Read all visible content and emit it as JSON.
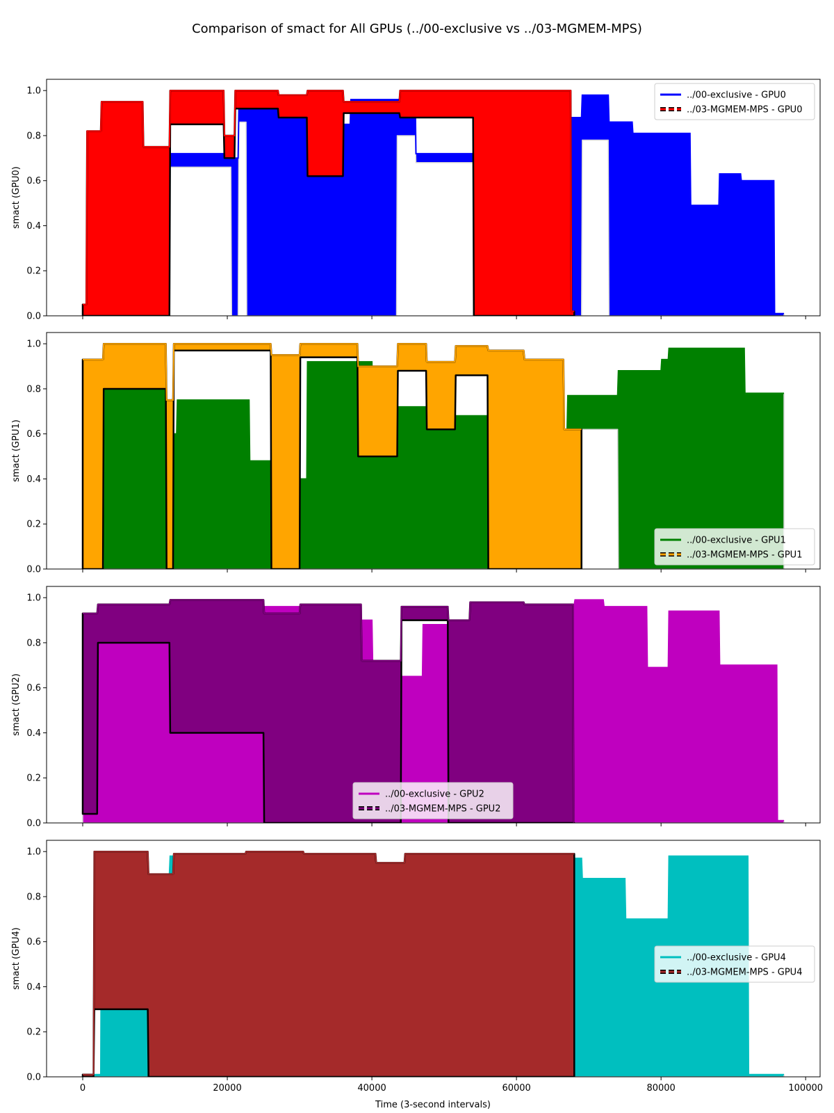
{
  "figure": {
    "title": "Comparison of smact for All GPUs (../00-exclusive vs ../03-MGMEM-MPS)",
    "xlabel": "Time (3-second intervals)"
  },
  "chart_data": [
    {
      "type": "line",
      "ylabel": "smact (GPU0)",
      "xlim": [
        -5000,
        102000
      ],
      "ylim": [
        0,
        1.05
      ],
      "xticks": [
        0,
        20000,
        40000,
        60000,
        80000,
        100000
      ],
      "xtick_labels": [
        "0",
        "20000",
        "40000",
        "60000",
        "80000",
        "100000"
      ],
      "show_xtick_labels": false,
      "yticks": [
        0.0,
        0.2,
        0.4,
        0.6,
        0.8,
        1.0
      ],
      "ytick_labels": [
        "0.0",
        "0.2",
        "0.4",
        "0.6",
        "0.8",
        "1.0"
      ],
      "legend_position": "top-right",
      "series": [
        {
          "name": "../00-exclusive - GPU0",
          "color": "#0000ff",
          "style": "solid",
          "x": [
            0,
            2800,
            2900,
            8200,
            8300,
            12000,
            12100,
            20500,
            20600,
            21500,
            21600,
            22600,
            22700,
            28700,
            28800,
            31000,
            31100,
            35500,
            35600,
            37000,
            37100,
            43400,
            43500,
            46000,
            46100,
            54000,
            54100,
            60200,
            60300,
            65500,
            65600,
            69000,
            69100,
            72700,
            72800,
            76000,
            76100,
            84000,
            84100,
            88000,
            88100,
            91000,
            91100,
            95600,
            95700,
            97000
          ],
          "upper": [
            0.03,
            0.03,
            0.65,
            0.65,
            0.75,
            0.75,
            0.72,
            0.72,
            0.7,
            0.7,
            0.92,
            0.92,
            0.92,
            0.92,
            0.88,
            0.88,
            0.92,
            0.92,
            0.85,
            0.85,
            0.96,
            0.96,
            0.96,
            0.96,
            0.72,
            0.72,
            0.7,
            0.7,
            0.98,
            0.98,
            0.88,
            0.88,
            0.98,
            0.98,
            0.86,
            0.86,
            0.81,
            0.81,
            0.49,
            0.49,
            0.63,
            0.63,
            0.6,
            0.6,
            0.01,
            0.01
          ],
          "lower": [
            0.0,
            0.0,
            0.5,
            0.5,
            0.0,
            0.0,
            0.66,
            0.66,
            0.0,
            0.0,
            0.86,
            0.86,
            0.0,
            0.0,
            0.0,
            0.0,
            0.0,
            0.0,
            0.0,
            0.0,
            0.0,
            0.0,
            0.8,
            0.8,
            0.68,
            0.68,
            0.0,
            0.0,
            0.0,
            0.0,
            0.0,
            0.0,
            0.78,
            0.78,
            0.0,
            0.0,
            0.0,
            0.0,
            0.0,
            0.0,
            0.0,
            0.0,
            0.0,
            0.0,
            0.0,
            0.0
          ]
        },
        {
          "name": "../03-MGMEM-MPS - GPU0",
          "color": "#ff0000",
          "style": "dashed",
          "x": [
            0,
            500,
            600,
            2500,
            2600,
            8300,
            8400,
            12000,
            12100,
            19500,
            19600,
            21000,
            21100,
            27000,
            27100,
            31000,
            31100,
            36000,
            36100,
            43800,
            43900,
            54000,
            54100,
            67500,
            67600,
            68000
          ],
          "upper": [
            0.05,
            0.05,
            0.82,
            0.82,
            0.95,
            0.95,
            0.75,
            0.75,
            1.0,
            1.0,
            0.8,
            0.8,
            1.0,
            1.0,
            0.98,
            0.98,
            1.0,
            1.0,
            0.95,
            0.95,
            1.0,
            1.0,
            1.0,
            1.0,
            0.02,
            0.02
          ],
          "lower": [
            0.0,
            0.0,
            0.0,
            0.0,
            0.0,
            0.0,
            0.0,
            0.0,
            0.85,
            0.85,
            0.7,
            0.7,
            0.92,
            0.92,
            0.88,
            0.88,
            0.62,
            0.62,
            0.9,
            0.9,
            0.88,
            0.88,
            0.0,
            0.0,
            0.0,
            0.0
          ]
        }
      ]
    },
    {
      "type": "line",
      "ylabel": "smact (GPU1)",
      "xlim": [
        -5000,
        102000
      ],
      "ylim": [
        0,
        1.05
      ],
      "xticks": [
        0,
        20000,
        40000,
        60000,
        80000,
        100000
      ],
      "xtick_labels": [
        "0",
        "20000",
        "40000",
        "60000",
        "80000",
        "100000"
      ],
      "show_xtick_labels": false,
      "yticks": [
        0.0,
        0.2,
        0.4,
        0.6,
        0.8,
        1.0
      ],
      "ytick_labels": [
        "0.0",
        "0.2",
        "0.4",
        "0.6",
        "0.8",
        "1.0"
      ],
      "legend_position": "bottom-right",
      "series": [
        {
          "name": "../00-exclusive - GPU1",
          "color": "#008000",
          "style": "solid",
          "x": [
            0,
            3000,
            3100,
            11500,
            11600,
            13000,
            13100,
            23000,
            23100,
            26000,
            26100,
            31000,
            31100,
            35000,
            35100,
            40000,
            40100,
            50000,
            50100,
            56000,
            56100,
            60000,
            60100,
            67000,
            67100,
            74000,
            74100,
            80000,
            80100,
            81000,
            81100,
            91500,
            91600,
            97000
          ],
          "upper": [
            0.01,
            0.01,
            0.82,
            0.82,
            0.6,
            0.6,
            0.75,
            0.75,
            0.48,
            0.48,
            0.4,
            0.4,
            0.92,
            0.92,
            0.92,
            0.92,
            0.72,
            0.72,
            0.68,
            0.68,
            0.8,
            0.8,
            0.6,
            0.6,
            0.77,
            0.77,
            0.88,
            0.88,
            0.93,
            0.93,
            0.98,
            0.98,
            0.78,
            0.78
          ],
          "lower": [
            0.0,
            0.0,
            0.0,
            0.0,
            0.0,
            0.0,
            0.0,
            0.0,
            0.0,
            0.0,
            0.0,
            0.0,
            0.0,
            0.0,
            0.0,
            0.0,
            0.0,
            0.0,
            0.0,
            0.0,
            0.0,
            0.0,
            0.0,
            0.0,
            0.62,
            0.62,
            0.0,
            0.0,
            0.0,
            0.0,
            0.0,
            0.0,
            0.0,
            0.0
          ]
        },
        {
          "name": "../03-MGMEM-MPS - GPU1",
          "color": "#ffa500",
          "style": "dashed",
          "x": [
            0,
            2800,
            2900,
            11500,
            11600,
            12500,
            12600,
            26000,
            26100,
            30000,
            30100,
            38000,
            38100,
            43500,
            43600,
            47500,
            47600,
            51500,
            51600,
            56000,
            56100,
            61000,
            61100,
            66500,
            66600,
            69000
          ],
          "upper": [
            0.93,
            0.93,
            1.0,
            1.0,
            0.75,
            0.75,
            1.0,
            1.0,
            0.95,
            0.95,
            1.0,
            1.0,
            0.9,
            0.9,
            1.0,
            1.0,
            0.92,
            0.92,
            0.99,
            0.99,
            0.97,
            0.97,
            0.93,
            0.93,
            0.62,
            0.62
          ],
          "lower": [
            0.0,
            0.0,
            0.8,
            0.8,
            0.0,
            0.0,
            0.97,
            0.97,
            0.0,
            0.0,
            0.94,
            0.94,
            0.5,
            0.5,
            0.88,
            0.88,
            0.62,
            0.62,
            0.86,
            0.86,
            0.0,
            0.0,
            0.0,
            0.0,
            0.0,
            0.0
          ]
        }
      ]
    },
    {
      "type": "line",
      "ylabel": "smact (GPU2)",
      "xlim": [
        -5000,
        102000
      ],
      "ylim": [
        0,
        1.05
      ],
      "xticks": [
        0,
        20000,
        40000,
        60000,
        80000,
        100000
      ],
      "xtick_labels": [
        "0",
        "20000",
        "40000",
        "60000",
        "80000",
        "100000"
      ],
      "show_xtick_labels": false,
      "yticks": [
        0.0,
        0.2,
        0.4,
        0.6,
        0.8,
        1.0
      ],
      "ytick_labels": [
        "0.0",
        "0.2",
        "0.4",
        "0.6",
        "0.8",
        "1.0"
      ],
      "legend_position": "bottom-center",
      "series": [
        {
          "name": "../00-exclusive - GPU2",
          "color": "#bf00bf",
          "style": "solid",
          "x": [
            0,
            2500,
            2600,
            12000,
            12100,
            25000,
            25100,
            31000,
            31100,
            37000,
            37100,
            40000,
            40100,
            44000,
            44100,
            47000,
            47100,
            54000,
            54100,
            68000,
            68100,
            72000,
            72100,
            78000,
            78100,
            81000,
            81100,
            88000,
            88100,
            96000,
            96100,
            97000
          ],
          "upper": [
            0.93,
            0.93,
            0.88,
            0.88,
            0.85,
            0.85,
            0.96,
            0.96,
            0.96,
            0.96,
            0.9,
            0.9,
            0.72,
            0.72,
            0.65,
            0.65,
            0.88,
            0.88,
            0.97,
            0.97,
            0.99,
            0.99,
            0.96,
            0.96,
            0.69,
            0.69,
            0.94,
            0.94,
            0.7,
            0.7,
            0.01,
            0.01
          ],
          "lower": [
            0.0,
            0.0,
            0.0,
            0.0,
            0.0,
            0.0,
            0.0,
            0.0,
            0.0,
            0.0,
            0.0,
            0.0,
            0.0,
            0.0,
            0.0,
            0.0,
            0.0,
            0.0,
            0.0,
            0.0,
            0.0,
            0.0,
            0.0,
            0.0,
            0.0,
            0.0,
            0.0,
            0.0,
            0.0,
            0.0,
            0.0,
            0.0
          ]
        },
        {
          "name": "../03-MGMEM-MPS - GPU2",
          "color": "#800080",
          "style": "dashed",
          "x": [
            0,
            2000,
            2100,
            12000,
            12100,
            25000,
            25100,
            30000,
            30100,
            38500,
            38600,
            44000,
            44100,
            50500,
            50600,
            53500,
            53600,
            61000,
            61100,
            67800,
            67900,
            68000
          ],
          "upper": [
            0.93,
            0.93,
            0.97,
            0.97,
            0.99,
            0.99,
            0.93,
            0.93,
            0.97,
            0.97,
            0.72,
            0.72,
            0.96,
            0.96,
            0.9,
            0.9,
            0.98,
            0.98,
            0.97,
            0.97,
            0.0,
            0.0
          ],
          "lower": [
            0.04,
            0.04,
            0.8,
            0.8,
            0.4,
            0.4,
            0.0,
            0.0,
            0.0,
            0.0,
            0.0,
            0.0,
            0.9,
            0.9,
            0.0,
            0.0,
            0.0,
            0.0,
            0.0,
            0.0,
            0.0,
            0.0
          ]
        }
      ]
    },
    {
      "type": "line",
      "ylabel": "smact (GPU4)",
      "xlim": [
        -5000,
        102000
      ],
      "ylim": [
        0,
        1.05
      ],
      "xticks": [
        0,
        20000,
        40000,
        60000,
        80000,
        100000
      ],
      "xtick_labels": [
        "0",
        "20000",
        "40000",
        "60000",
        "80000",
        "100000"
      ],
      "show_xtick_labels": true,
      "yticks": [
        0.0,
        0.2,
        0.4,
        0.6,
        0.8,
        1.0
      ],
      "ytick_labels": [
        "0.0",
        "0.2",
        "0.4",
        "0.6",
        "0.8",
        "1.0"
      ],
      "legend_position": "center-right",
      "series": [
        {
          "name": "../00-exclusive - GPU4",
          "color": "#00bfbf",
          "style": "solid",
          "x": [
            0,
            2500,
            2600,
            12000,
            12100,
            23000,
            23100,
            27000,
            27100,
            30000,
            30100,
            34500,
            34600,
            44000,
            44100,
            55500,
            55600,
            60000,
            60100,
            67500,
            67600,
            69000,
            69100,
            75000,
            75100,
            81000,
            81100,
            92000,
            92100,
            97000
          ],
          "upper": [
            0.01,
            0.01,
            0.9,
            0.9,
            0.98,
            0.98,
            0.7,
            0.7,
            0.85,
            0.85,
            0.75,
            0.75,
            0.8,
            0.8,
            0.7,
            0.7,
            0.55,
            0.55,
            0.95,
            0.95,
            0.97,
            0.97,
            0.88,
            0.88,
            0.7,
            0.7,
            0.98,
            0.98,
            0.01,
            0.01
          ],
          "lower": [
            0.0,
            0.0,
            0.0,
            0.0,
            0.0,
            0.0,
            0.0,
            0.0,
            0.0,
            0.0,
            0.0,
            0.0,
            0.0,
            0.0,
            0.0,
            0.0,
            0.0,
            0.0,
            0.0,
            0.0,
            0.0,
            0.0,
            0.0,
            0.0,
            0.0,
            0.0,
            0.0,
            0.0,
            0.0,
            0.0
          ]
        },
        {
          "name": "../03-MGMEM-MPS - GPU4",
          "color": "#a52a2a",
          "style": "dashed",
          "x": [
            0,
            1500,
            1600,
            9000,
            9100,
            12500,
            12600,
            22500,
            22600,
            30500,
            30600,
            40500,
            40600,
            44500,
            44600,
            53500,
            53600,
            68000
          ],
          "upper": [
            0.01,
            0.01,
            1.0,
            1.0,
            0.9,
            0.9,
            0.99,
            0.99,
            1.0,
            1.0,
            0.99,
            0.99,
            0.95,
            0.95,
            0.99,
            0.99,
            0.99,
            0.99
          ],
          "lower": [
            0.0,
            0.0,
            0.3,
            0.3,
            0.0,
            0.0,
            0.0,
            0.0,
            0.0,
            0.0,
            0.0,
            0.0,
            0.0,
            0.0,
            0.0,
            0.0,
            0.0,
            0.0
          ]
        }
      ]
    }
  ]
}
